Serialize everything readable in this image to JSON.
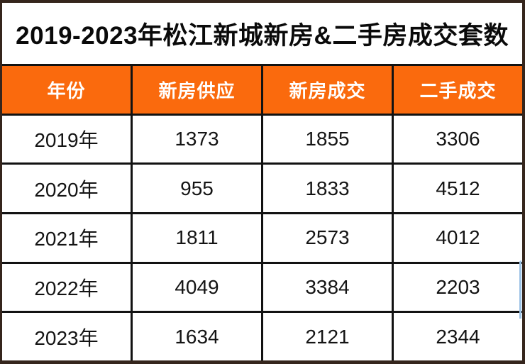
{
  "title": "2019-2023年松江新城新房&二手房成交套数",
  "table": {
    "columns": [
      "年份",
      "新房供应",
      "新房成交",
      "二手成交"
    ],
    "rows": [
      [
        "2019年",
        "1373",
        "1855",
        "3306"
      ],
      [
        "2020年",
        "955",
        "1833",
        "4512"
      ],
      [
        "2021年",
        "1811",
        "2573",
        "4012"
      ],
      [
        "2022年",
        "4049",
        "3384",
        "2203"
      ],
      [
        "2023年",
        "1634",
        "2121",
        "2344"
      ]
    ]
  },
  "colors": {
    "header_bg": "#FA6A0D",
    "header_text": "#FFFFFF",
    "gridline": "#121212",
    "frame_border": "#35251C",
    "cell_bg": "#FFFFFF",
    "title_text": "#0A0A0A",
    "selection_artifact": "#9CC2E5"
  },
  "chart_data": {
    "type": "table",
    "title": "2019-2023年松江新城新房&二手房成交套数",
    "categories": [
      "2019年",
      "2020年",
      "2021年",
      "2022年",
      "2023年"
    ],
    "series": [
      {
        "name": "新房供应",
        "values": [
          1373,
          955,
          1811,
          4049,
          1634
        ]
      },
      {
        "name": "新房成交",
        "values": [
          1855,
          1833,
          2573,
          3384,
          2121
        ]
      },
      {
        "name": "二手成交",
        "values": [
          3306,
          4512,
          4012,
          2203,
          2344
        ]
      }
    ],
    "legend_position": "header-row",
    "grid": true
  }
}
